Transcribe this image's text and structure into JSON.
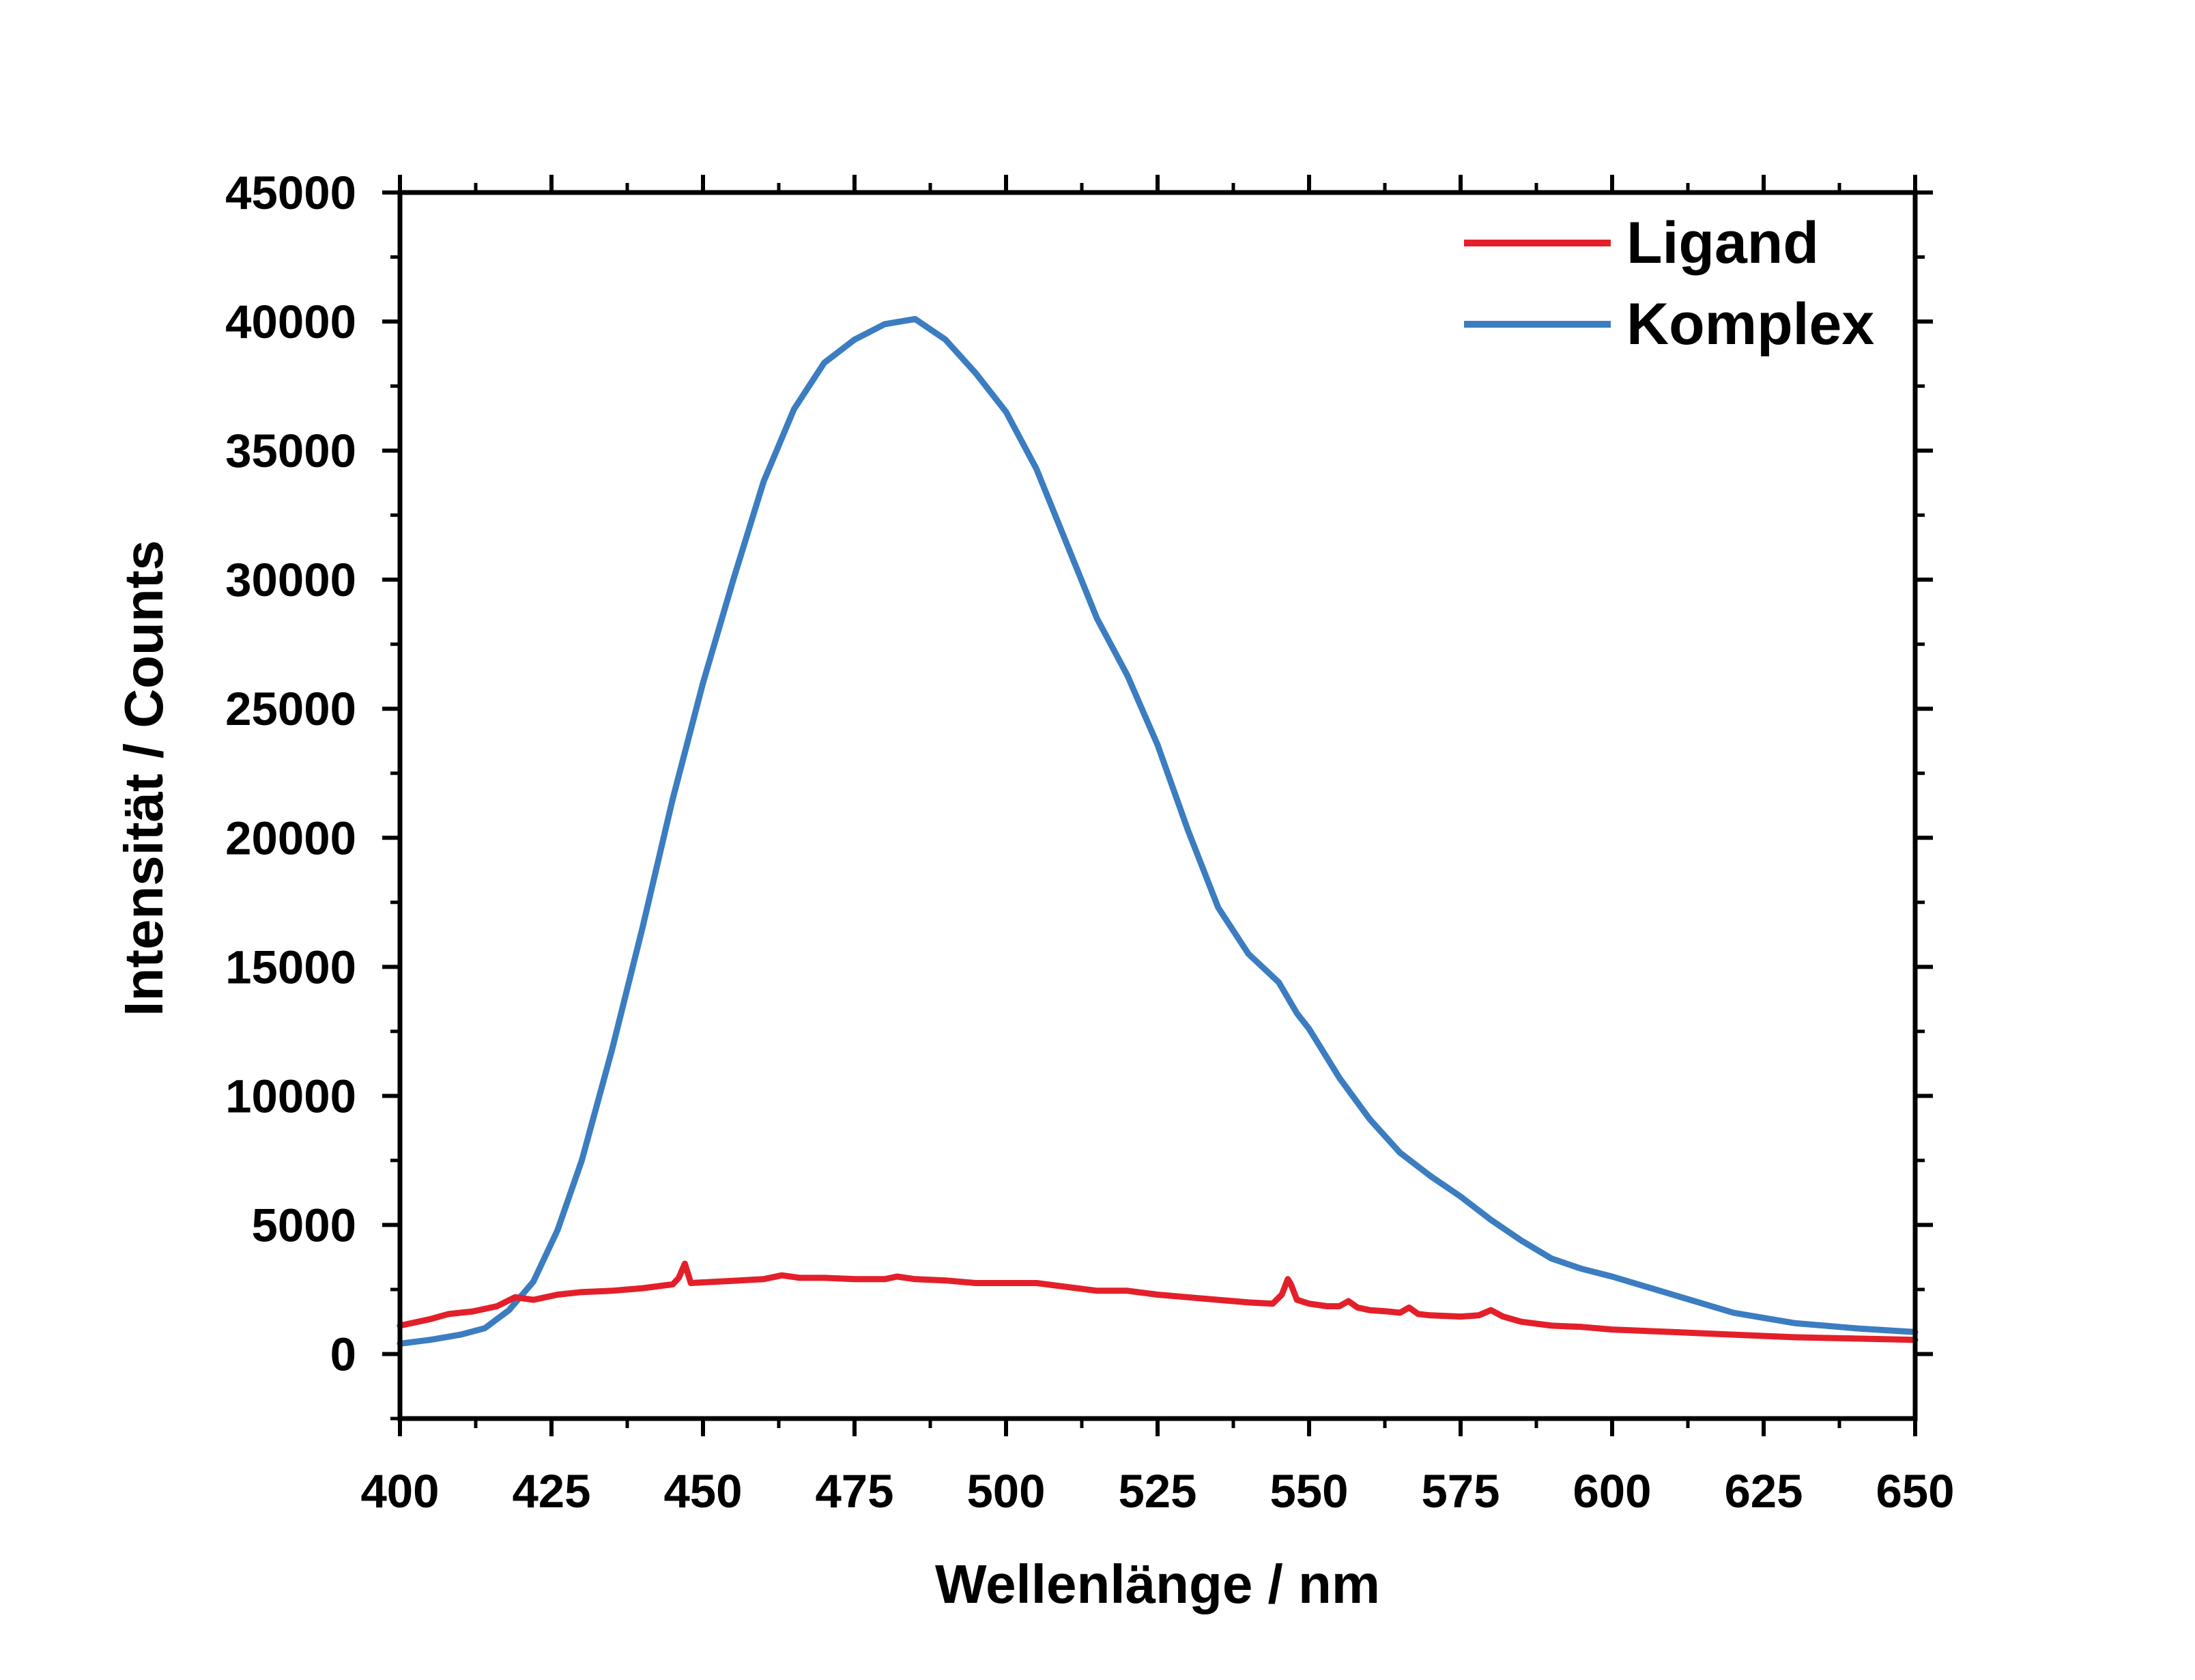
{
  "chart_data": {
    "type": "line",
    "xlabel": "Wellenlänge / nm",
    "ylabel": "Intensität / Counts",
    "xlim": [
      400,
      650
    ],
    "ylim": [
      -2500,
      45000
    ],
    "x_ticks": [
      400,
      425,
      450,
      475,
      500,
      525,
      550,
      575,
      600,
      625,
      650
    ],
    "y_ticks": [
      0,
      5000,
      10000,
      15000,
      20000,
      25000,
      30000,
      35000,
      40000,
      45000
    ],
    "grid": false,
    "legend_position": "top-right",
    "series": [
      {
        "name": "Ligand",
        "color": "#e3202a",
        "x": [
          400,
          405,
          408,
          412,
          416,
          419,
          422,
          426,
          430,
          435,
          440,
          445,
          446,
          447,
          448,
          452,
          456,
          460,
          463,
          466,
          470,
          475,
          480,
          482,
          485,
          490,
          495,
          500,
          505,
          510,
          515,
          520,
          525,
          530,
          535,
          540,
          544,
          545.5,
          546.5,
          547,
          548,
          550,
          553,
          555,
          556.5,
          558,
          560,
          563,
          565,
          566.5,
          568,
          570,
          575,
          578,
          580,
          582,
          585,
          590,
          595,
          600,
          610,
          620,
          630,
          640,
          650
        ],
        "y": [
          1100,
          1350,
          1550,
          1650,
          1850,
          2200,
          2100,
          2300,
          2400,
          2450,
          2550,
          2700,
          2950,
          3500,
          2750,
          2800,
          2850,
          2900,
          3050,
          2950,
          2950,
          2900,
          2900,
          3000,
          2900,
          2850,
          2750,
          2750,
          2750,
          2600,
          2450,
          2450,
          2300,
          2200,
          2100,
          2000,
          1950,
          2300,
          2900,
          2700,
          2100,
          1950,
          1850,
          1850,
          2050,
          1800,
          1700,
          1650,
          1600,
          1800,
          1550,
          1500,
          1450,
          1500,
          1700,
          1450,
          1250,
          1100,
          1050,
          950,
          850,
          750,
          650,
          600,
          550
        ]
      },
      {
        "name": "Komplex",
        "color": "#3b7dc0",
        "x": [
          400,
          405,
          410,
          414,
          418,
          422,
          426,
          430,
          435,
          440,
          445,
          450,
          455,
          460,
          465,
          470,
          475,
          480,
          485,
          490,
          495,
          500,
          505,
          510,
          515,
          520,
          525,
          530,
          535,
          540,
          545,
          548,
          550,
          555,
          560,
          565,
          570,
          575,
          580,
          585,
          590,
          595,
          600,
          610,
          620,
          630,
          640,
          650
        ],
        "y": [
          400,
          550,
          750,
          1000,
          1700,
          2800,
          4800,
          7500,
          11800,
          16500,
          21500,
          26000,
          30000,
          33800,
          36600,
          38400,
          39300,
          39900,
          40100,
          39300,
          38000,
          36500,
          34300,
          31400,
          28500,
          26300,
          23600,
          20300,
          17300,
          15500,
          14400,
          13200,
          12600,
          10700,
          9100,
          7800,
          6900,
          6100,
          5200,
          4400,
          3700,
          3300,
          3000,
          2300,
          1600,
          1200,
          1000,
          850
        ]
      }
    ]
  }
}
